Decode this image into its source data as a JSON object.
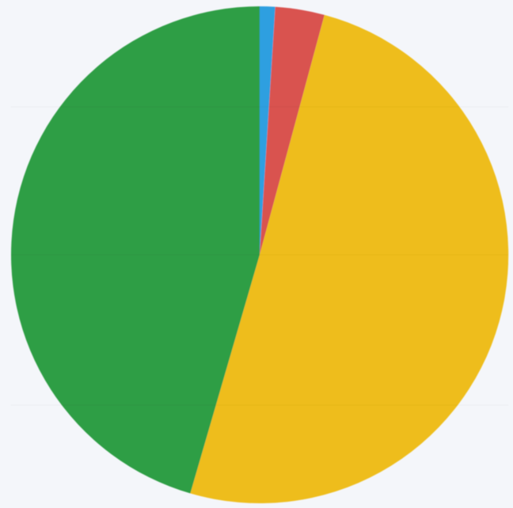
{
  "chart_data": {
    "type": "pie",
    "title": "",
    "categories": [
      "",
      "",
      "",
      ""
    ],
    "values": [
      1.0,
      3.2,
      50.3,
      45.5
    ],
    "colors": [
      "#2f9fe0",
      "#d95350",
      "#eebd1a",
      "#2f9e45"
    ],
    "start_angle_deg": 0,
    "direction": "clockwise",
    "legend": "none",
    "data_labels": "none"
  }
}
